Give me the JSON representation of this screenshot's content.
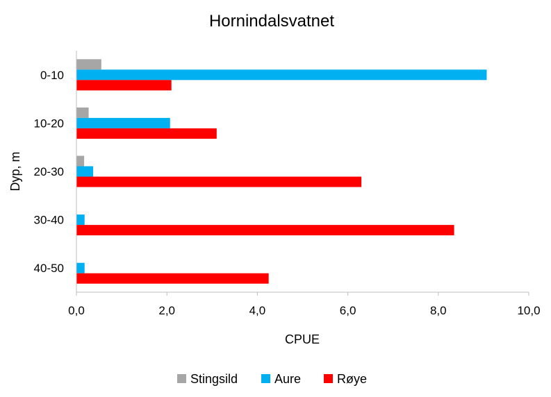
{
  "chart_data": {
    "type": "bar",
    "orientation": "horizontal",
    "title": "Hornindalsvatnet",
    "xlabel": "CPUE",
    "ylabel": "Dyp, m",
    "categories": [
      "0-10",
      "10-20",
      "20-30",
      "30-40",
      "40-50"
    ],
    "series": [
      {
        "name": "Stingsild",
        "color": "#a6a6a6",
        "values": [
          0.55,
          0.27,
          0.17,
          0.0,
          0.0
        ]
      },
      {
        "name": "Aure",
        "color": "#00b0f0",
        "values": [
          9.07,
          2.07,
          0.37,
          0.18,
          0.18
        ]
      },
      {
        "name": "Røye",
        "color": "#ff0000",
        "values": [
          2.1,
          3.1,
          6.3,
          8.35,
          4.25
        ]
      }
    ],
    "xlim": [
      0,
      10
    ],
    "xticks": [
      "0,0",
      "2,0",
      "4,0",
      "6,0",
      "8,0",
      "10,0"
    ],
    "grid": false,
    "legend_position": "bottom"
  }
}
